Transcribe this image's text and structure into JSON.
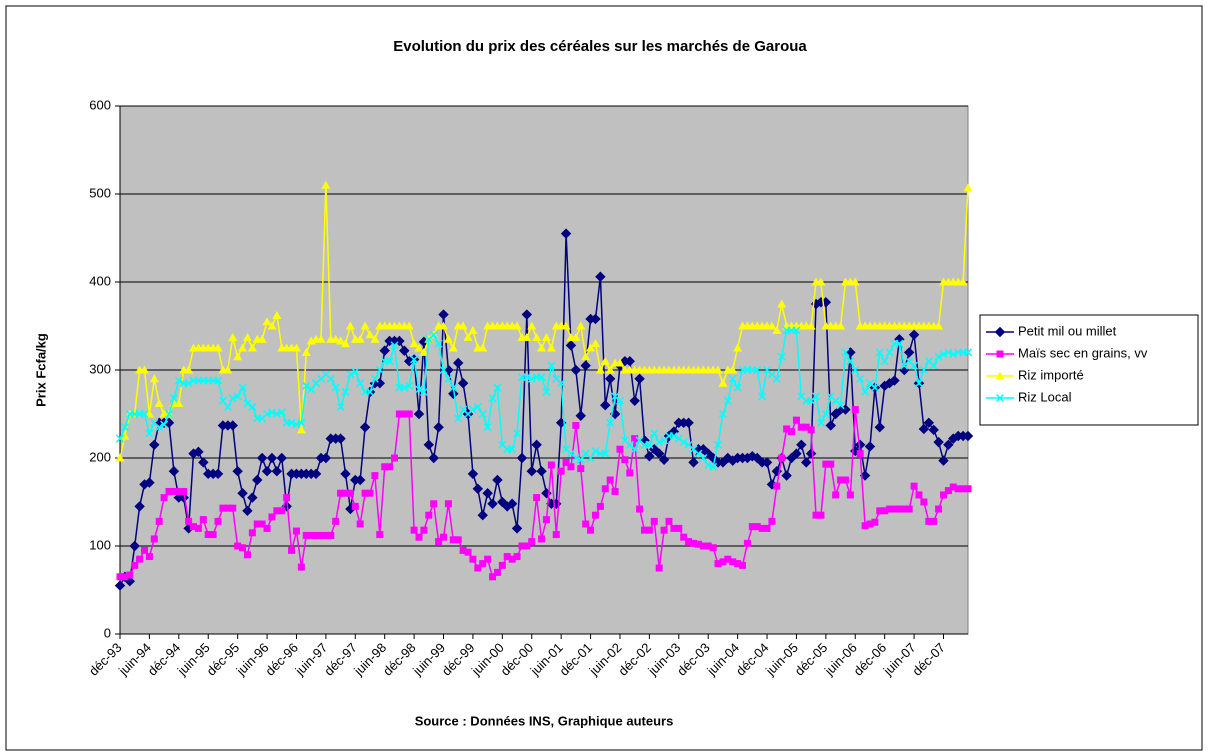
{
  "chart_data": {
    "type": "line",
    "title": "Evolution du prix des céréales sur les marchés de Garoua",
    "y_label": "Prix Fcfa/kg",
    "source": "Source : Données INS, Graphique auteurs",
    "ylim": [
      0,
      600
    ],
    "yticks": [
      0,
      100,
      200,
      300,
      400,
      500,
      600
    ],
    "grid": true,
    "legend": "right",
    "categories": [
      "déc-93",
      null,
      null,
      null,
      null,
      null,
      "juin-94",
      null,
      null,
      null,
      null,
      null,
      "déc-94",
      null,
      null,
      null,
      null,
      null,
      "juin-95",
      null,
      null,
      null,
      null,
      null,
      "déc-95",
      null,
      null,
      null,
      null,
      null,
      "juin-96",
      null,
      null,
      null,
      null,
      null,
      "déc-96",
      null,
      null,
      null,
      null,
      null,
      "juin-97",
      null,
      null,
      null,
      null,
      null,
      "déc-97",
      null,
      null,
      null,
      null,
      null,
      "juin-98",
      null,
      null,
      null,
      null,
      null,
      "déc-98",
      null,
      null,
      null,
      null,
      null,
      "juin-99",
      null,
      null,
      null,
      null,
      null,
      "déc-99",
      null,
      null,
      null,
      null,
      null,
      "juin-00",
      null,
      null,
      null,
      null,
      null,
      "déc-00",
      null,
      null,
      null,
      null,
      null,
      "juin-01",
      null,
      null,
      null,
      null,
      null,
      "déc-01",
      null,
      null,
      null,
      null,
      null,
      "juin-02",
      null,
      null,
      null,
      null,
      null,
      "déc-02",
      null,
      null,
      null,
      null,
      null,
      "juin-03",
      null,
      null,
      null,
      null,
      null,
      "déc-03",
      null,
      null,
      null,
      null,
      null,
      "juin-04",
      null,
      null,
      null,
      null,
      null,
      "déc-04",
      null,
      null,
      null,
      null,
      null,
      "juin-05",
      null,
      null,
      null,
      null,
      null,
      "déc-05",
      null,
      null,
      null,
      null,
      null,
      "juin-06",
      null,
      null,
      null,
      null,
      null,
      "déc-06",
      null,
      null,
      null,
      null,
      null,
      "juin-07",
      null,
      null,
      null,
      null,
      null,
      "déc-07",
      null,
      null,
      null,
      null,
      null
    ],
    "series": [
      {
        "name": "Petit mil ou millet",
        "color": "#000080",
        "marker": "diamond",
        "values": [
          55,
          65,
          60,
          100,
          145,
          170,
          172,
          215,
          240,
          240,
          240,
          185,
          155,
          155,
          120,
          205,
          207,
          195,
          182,
          182,
          182,
          237,
          237,
          237,
          185,
          160,
          140,
          155,
          175,
          200,
          185,
          200,
          185,
          200,
          145,
          182,
          182,
          182,
          182,
          182,
          182,
          200,
          200,
          222,
          222,
          222,
          182,
          142,
          175,
          175,
          235,
          275,
          285,
          285,
          322,
          333,
          333,
          333,
          322,
          310,
          312,
          250,
          332,
          215,
          200,
          235,
          363,
          300,
          273,
          308,
          285,
          250,
          182,
          165,
          135,
          160,
          148,
          175,
          150,
          145,
          148,
          120,
          200,
          363,
          185,
          215,
          185,
          160,
          148,
          148,
          240,
          455,
          328,
          300,
          248,
          305,
          358,
          358,
          406,
          260,
          290,
          250,
          305,
          310,
          310,
          265,
          290,
          220,
          202,
          210,
          205,
          198,
          225,
          230,
          240,
          240,
          240,
          195,
          210,
          210,
          205,
          200,
          195,
          195,
          200,
          197,
          200,
          200,
          200,
          202,
          200,
          195,
          195,
          170,
          185,
          200,
          180,
          200,
          205,
          215,
          195,
          205,
          375,
          377,
          377,
          237,
          250,
          255,
          255,
          320,
          208,
          215,
          180,
          213,
          280,
          235,
          282,
          285,
          288,
          335,
          300,
          320,
          340,
          285,
          233,
          240,
          232,
          218,
          197,
          215,
          222,
          225,
          225,
          225
        ]
      },
      {
        "name": "Maïs sec en  grains, vv",
        "color": "#ff00ff",
        "marker": "square",
        "values": [
          65,
          65,
          67,
          78,
          85,
          95,
          88,
          108,
          128,
          155,
          162,
          162,
          162,
          162,
          128,
          122,
          120,
          130,
          113,
          113,
          128,
          143,
          143,
          143,
          100,
          98,
          90,
          115,
          125,
          125,
          120,
          133,
          140,
          140,
          155,
          95,
          117,
          76,
          112,
          112,
          112,
          112,
          112,
          112,
          128,
          160,
          160,
          160,
          145,
          125,
          160,
          160,
          180,
          113,
          190,
          190,
          200,
          250,
          250,
          250,
          118,
          110,
          118,
          135,
          148,
          105,
          110,
          148,
          107,
          107,
          95,
          93,
          85,
          75,
          80,
          85,
          65,
          70,
          78,
          88,
          85,
          88,
          100,
          100,
          105,
          155,
          108,
          130,
          192,
          113,
          185,
          195,
          190,
          237,
          188,
          125,
          118,
          135,
          145,
          165,
          175,
          162,
          210,
          198,
          183,
          222,
          142,
          118,
          118,
          128,
          75,
          118,
          128,
          120,
          120,
          110,
          105,
          103,
          102,
          100,
          100,
          98,
          80,
          82,
          85,
          82,
          80,
          78,
          103,
          122,
          122,
          120,
          120,
          128,
          168,
          200,
          233,
          230,
          243,
          235,
          235,
          232,
          135,
          135,
          193,
          193,
          158,
          175,
          175,
          158,
          255,
          205,
          123,
          125,
          127,
          140,
          140,
          142,
          142,
          142,
          142,
          142,
          168,
          158,
          150,
          128,
          128,
          142,
          158,
          163,
          167,
          165,
          165,
          165
        ]
      },
      {
        "name": "Riz importé",
        "color": "#ffff00",
        "marker": "triangle",
        "values": [
          200,
          225,
          250,
          250,
          300,
          300,
          250,
          290,
          262,
          250,
          250,
          262,
          262,
          300,
          300,
          325,
          325,
          325,
          325,
          325,
          325,
          300,
          300,
          337,
          315,
          325,
          337,
          325,
          335,
          335,
          355,
          350,
          362,
          325,
          325,
          325,
          325,
          232,
          320,
          333,
          335,
          335,
          510,
          335,
          335,
          333,
          330,
          350,
          335,
          335,
          350,
          340,
          335,
          350,
          350,
          350,
          350,
          350,
          350,
          350,
          330,
          325,
          320,
          335,
          340,
          350,
          350,
          335,
          325,
          350,
          350,
          337,
          345,
          325,
          325,
          350,
          350,
          350,
          350,
          350,
          350,
          350,
          337,
          337,
          350,
          337,
          325,
          337,
          325,
          350,
          350,
          350,
          337,
          337,
          350,
          315,
          325,
          330,
          300,
          310,
          300,
          308,
          308,
          300,
          300,
          300,
          300,
          300,
          300,
          300,
          300,
          300,
          300,
          300,
          300,
          300,
          300,
          300,
          300,
          300,
          300,
          300,
          300,
          285,
          300,
          300,
          325,
          350,
          350,
          350,
          350,
          350,
          350,
          350,
          345,
          375,
          350,
          350,
          350,
          350,
          350,
          350,
          400,
          400,
          350,
          350,
          350,
          350,
          400,
          400,
          400,
          350,
          350,
          350,
          350,
          350,
          350,
          350,
          350,
          350,
          350,
          350,
          350,
          350,
          350,
          350,
          350,
          350,
          400,
          400,
          400,
          400,
          400,
          507
        ]
      },
      {
        "name": "Riz Local",
        "color": "#00ffff",
        "marker": "cross",
        "values": [
          222,
          235,
          250,
          250,
          250,
          250,
          228,
          240,
          235,
          238,
          250,
          268,
          288,
          285,
          285,
          288,
          288,
          288,
          288,
          288,
          288,
          265,
          258,
          268,
          270,
          280,
          262,
          258,
          245,
          245,
          250,
          252,
          250,
          252,
          240,
          240,
          238,
          240,
          282,
          278,
          285,
          290,
          295,
          290,
          280,
          258,
          275,
          295,
          298,
          285,
          275,
          275,
          290,
          300,
          310,
          310,
          328,
          280,
          280,
          282,
          312,
          278,
          275,
          335,
          340,
          330,
          300,
          290,
          280,
          245,
          255,
          250,
          255,
          258,
          250,
          235,
          268,
          280,
          215,
          210,
          210,
          228,
          292,
          292,
          290,
          292,
          292,
          275,
          305,
          290,
          285,
          210,
          205,
          200,
          198,
          205,
          200,
          208,
          205,
          205,
          240,
          270,
          265,
          220,
          215,
          210,
          220,
          215,
          215,
          228,
          218,
          220,
          225,
          225,
          222,
          218,
          215,
          210,
          205,
          200,
          192,
          190,
          215,
          250,
          265,
          290,
          280,
          300,
          300,
          300,
          300,
          270,
          300,
          295,
          290,
          315,
          345,
          345,
          345,
          270,
          265,
          265,
          270,
          240,
          250,
          270,
          265,
          260,
          320,
          310,
          300,
          290,
          275,
          285,
          280,
          320,
          310,
          320,
          330,
          330,
          305,
          310,
          305,
          285,
          300,
          310,
          305,
          315,
          318,
          320,
          318,
          320,
          320,
          320
        ]
      }
    ]
  }
}
